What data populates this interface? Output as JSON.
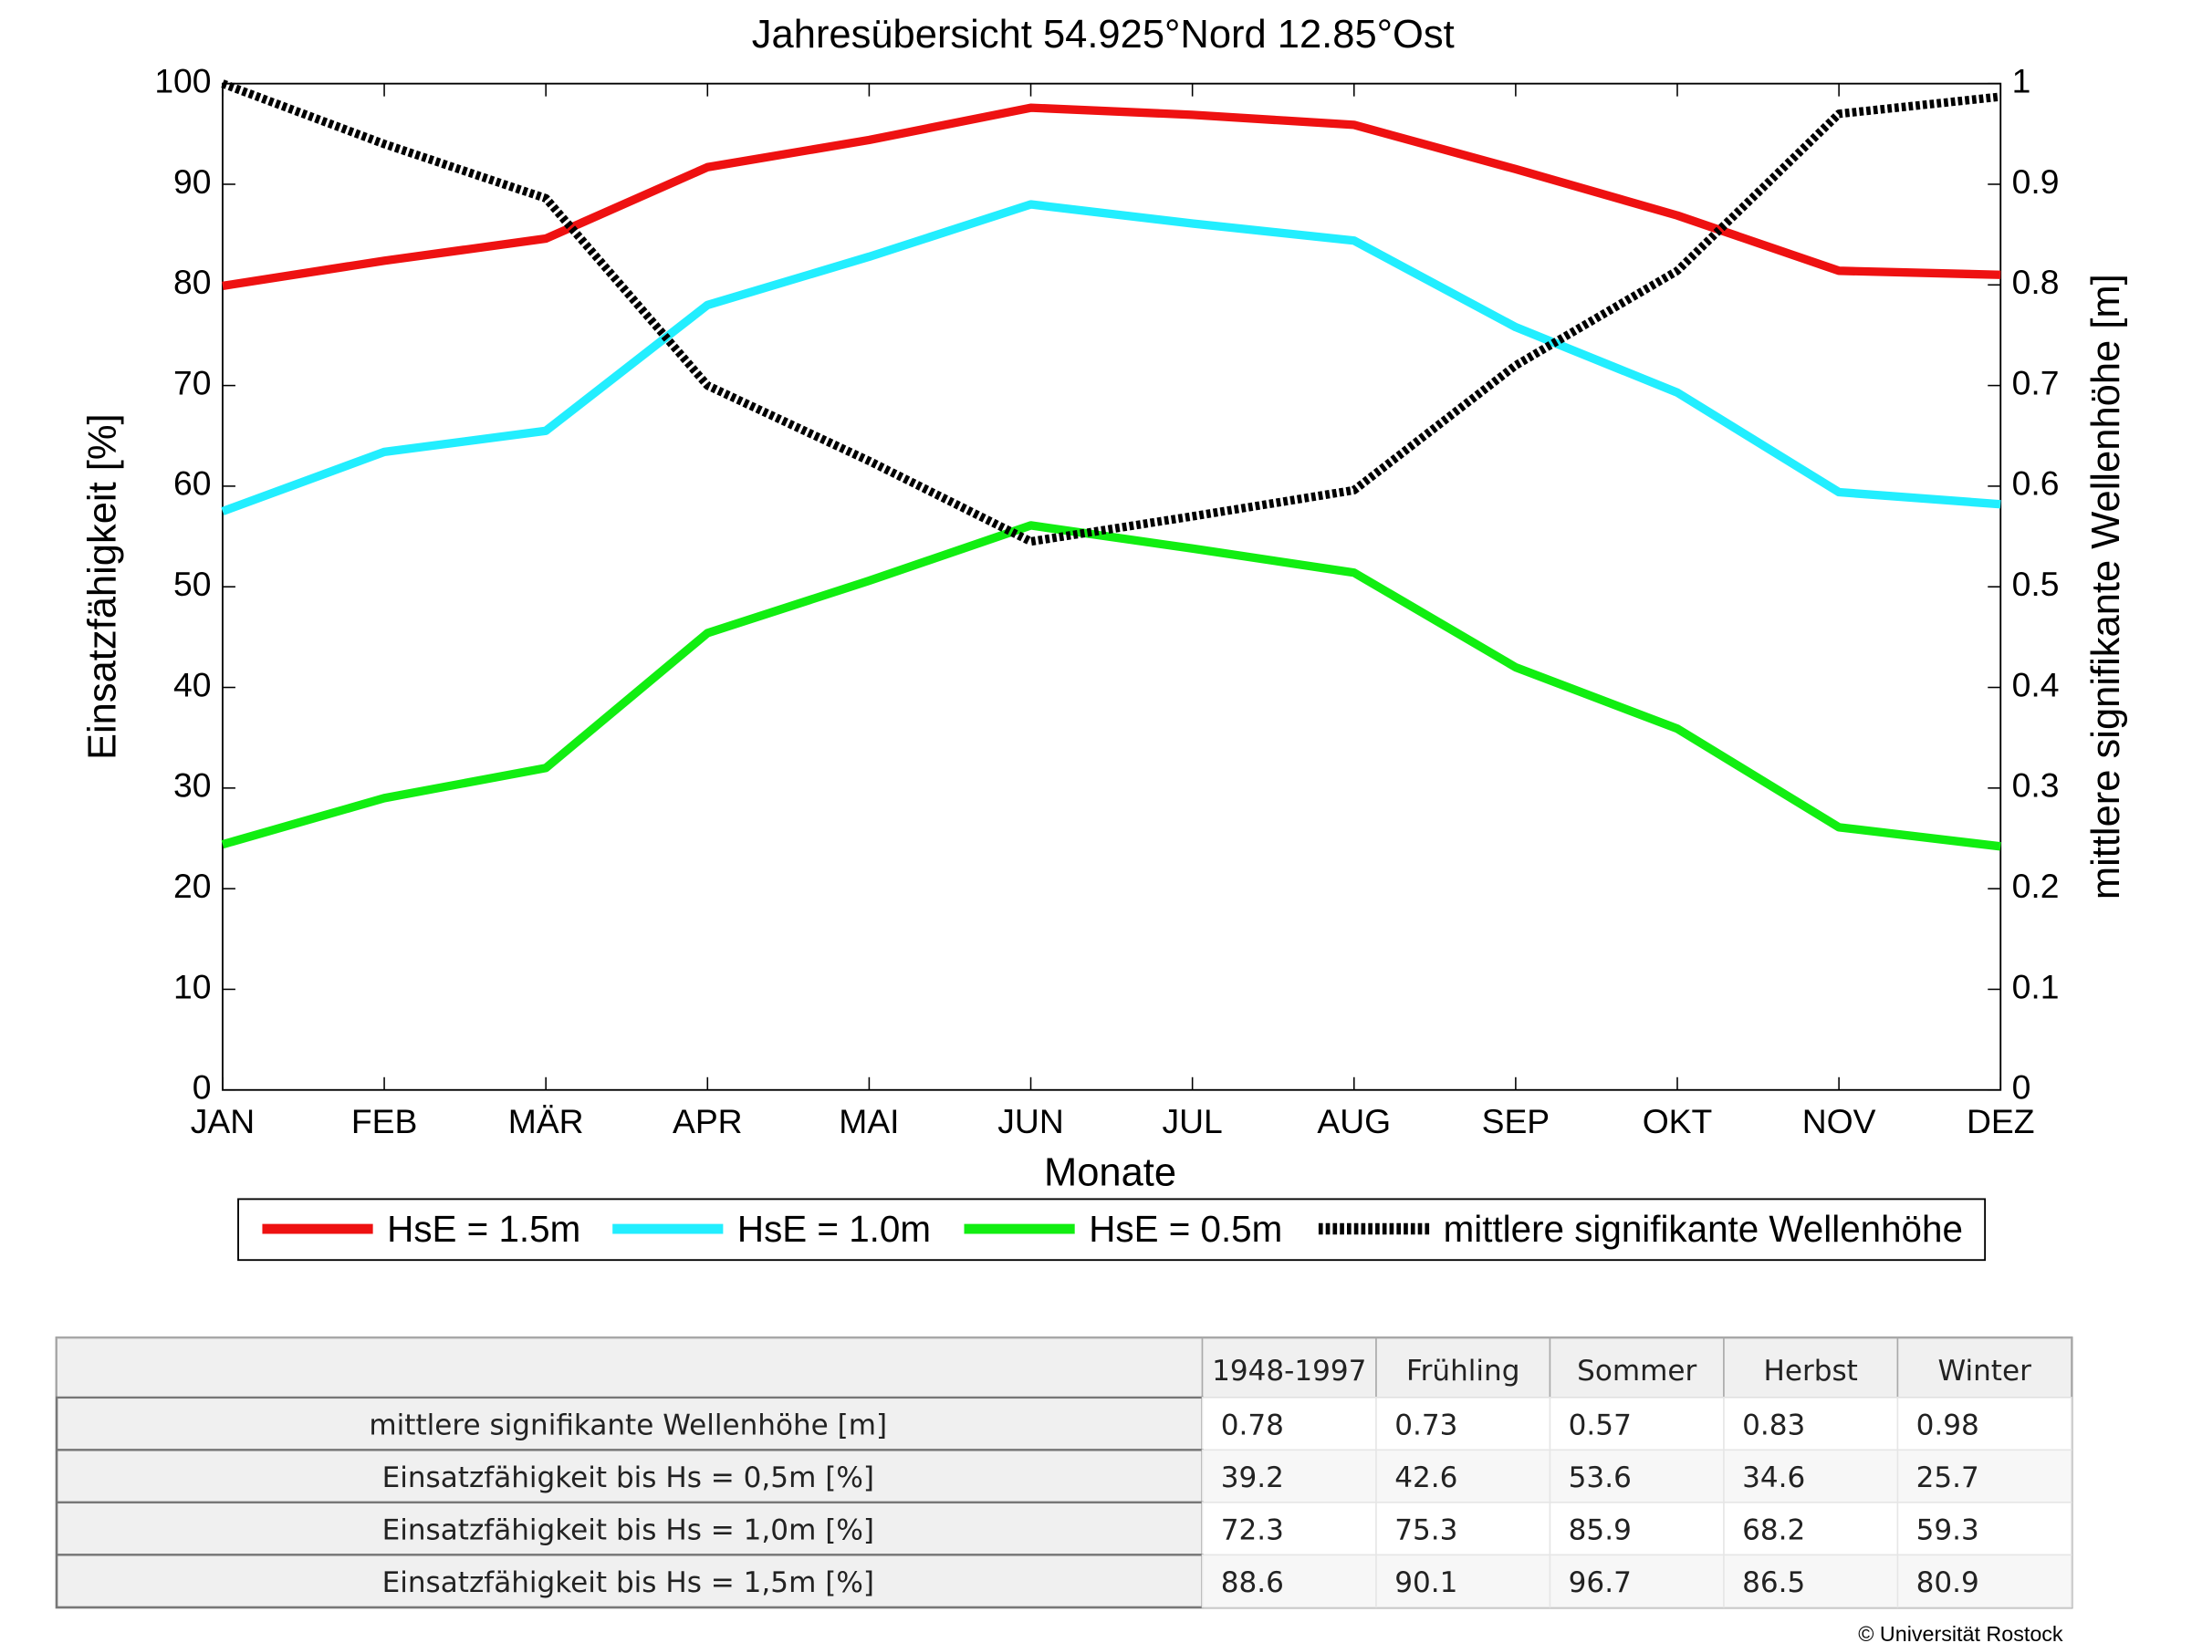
{
  "chart_data": {
    "type": "line",
    "title": "Jahresübersicht  54.925°Nord  12.85°Ost",
    "xlabel": "Monate",
    "ylabel": "Einsatzfähigkeit [%]",
    "y2label": "mittlere signifikante Wellenhöhe [m]",
    "categories": [
      "JAN",
      "FEB",
      "MÄR",
      "APR",
      "MAI",
      "JUN",
      "JUL",
      "AUG",
      "SEP",
      "OKT",
      "NOV",
      "DEZ"
    ],
    "series": [
      {
        "name": "HsE = 1.5m",
        "color": "#ee1111",
        "values": [
          79.9,
          82.4,
          84.6,
          91.7,
          94.4,
          97.6,
          96.9,
          95.9,
          91.5,
          86.9,
          81.4,
          81.0
        ]
      },
      {
        "name": "HsE = 1.0m",
        "color": "#22eeff",
        "values": [
          57.5,
          63.4,
          65.5,
          78.0,
          82.8,
          88.0,
          86.1,
          84.4,
          75.8,
          69.3,
          59.4,
          58.2
        ]
      },
      {
        "name": "HsE = 0.5m",
        "color": "#11ee11",
        "values": [
          24.4,
          29.0,
          32.0,
          45.4,
          50.6,
          56.1,
          53.8,
          51.4,
          42.0,
          35.9,
          26.1,
          24.2
        ]
      },
      {
        "name": "mittlere signifikante Wellenhöhe",
        "color": "#000000",
        "dashed": true,
        "axis": "y2",
        "values": [
          1.0,
          0.94,
          0.886,
          0.7,
          0.625,
          0.545,
          0.57,
          0.596,
          0.72,
          0.814,
          0.97,
          0.987
        ]
      }
    ],
    "ylim": [
      0,
      100
    ],
    "yticks": [
      0,
      10,
      20,
      30,
      40,
      50,
      60,
      70,
      80,
      90,
      100
    ],
    "y2lim": [
      0,
      1
    ],
    "y2ticks": [
      0,
      0.1,
      0.2,
      0.3,
      0.4,
      0.5,
      0.6,
      0.7,
      0.8,
      0.9,
      1
    ],
    "legend": "bottom"
  },
  "table": {
    "columns": [
      "1948-1997",
      "Frühling",
      "Sommer",
      "Herbst",
      "Winter"
    ],
    "rows": [
      {
        "label": "mittlere signifikante Wellenhöhe [m]",
        "values": [
          0.78,
          0.73,
          0.57,
          0.83,
          0.98
        ]
      },
      {
        "label": "Einsatzfähigkeit bis Hs = 0,5m [%]",
        "values": [
          39.2,
          42.6,
          53.6,
          34.6,
          25.7
        ]
      },
      {
        "label": "Einsatzfähigkeit bis Hs = 1,0m [%]",
        "values": [
          72.3,
          75.3,
          85.9,
          68.2,
          59.3
        ]
      },
      {
        "label": "Einsatzfähigkeit bis Hs = 1,5m [%]",
        "values": [
          88.6,
          90.1,
          96.7,
          86.5,
          80.9
        ]
      }
    ]
  },
  "footer": "© Universität Rostock"
}
